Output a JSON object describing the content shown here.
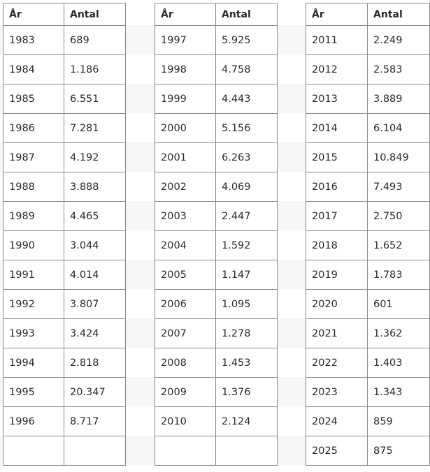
{
  "tables": [
    {
      "headers": [
        "År",
        "Antal"
      ],
      "rows": [
        [
          "1983",
          "689"
        ],
        [
          "1984",
          "1.186"
        ],
        [
          "1985",
          "6.551"
        ],
        [
          "1986",
          "7.281"
        ],
        [
          "1987",
          "4.192"
        ],
        [
          "1988",
          "3.888"
        ],
        [
          "1989",
          "4.465"
        ],
        [
          "1990",
          "3.044"
        ],
        [
          "1991",
          "4.014"
        ],
        [
          "1992",
          "3.807"
        ],
        [
          "1993",
          "3.424"
        ],
        [
          "1994",
          "2.818"
        ],
        [
          "1995",
          "20.347"
        ],
        [
          "1996",
          "8.717"
        ]
      ]
    },
    {
      "headers": [
        "År",
        "Antal"
      ],
      "rows": [
        [
          "1997",
          "5.925"
        ],
        [
          "1998",
          "4.758"
        ],
        [
          "1999",
          "4.443"
        ],
        [
          "2000",
          "5.156"
        ],
        [
          "2001",
          "6.263"
        ],
        [
          "2002",
          "4.069"
        ],
        [
          "2003",
          "2.447"
        ],
        [
          "2004",
          "1.592"
        ],
        [
          "2005",
          "1.147"
        ],
        [
          "2006",
          "1.095"
        ],
        [
          "2007",
          "1.278"
        ],
        [
          "2008",
          "1.453"
        ],
        [
          "2009",
          "1.376"
        ],
        [
          "2010",
          "2.124"
        ]
      ]
    },
    {
      "headers": [
        "År",
        "Antal"
      ],
      "rows": [
        [
          "2011",
          "2.249"
        ],
        [
          "2012",
          "2.583"
        ],
        [
          "2013",
          "3.889"
        ],
        [
          "2014",
          "6.104"
        ],
        [
          "2015",
          "10.849"
        ],
        [
          "2016",
          "7.493"
        ],
        [
          "2017",
          "2.750"
        ],
        [
          "2018",
          "1.652"
        ],
        [
          "2019",
          "1.783"
        ],
        [
          "2020",
          "601"
        ],
        [
          "2021",
          "1.362"
        ],
        [
          "2022",
          "1.403"
        ],
        [
          "2023",
          "1.343"
        ],
        [
          "2024",
          "859"
        ],
        [
          "2025",
          "875"
        ]
      ]
    }
  ]
}
